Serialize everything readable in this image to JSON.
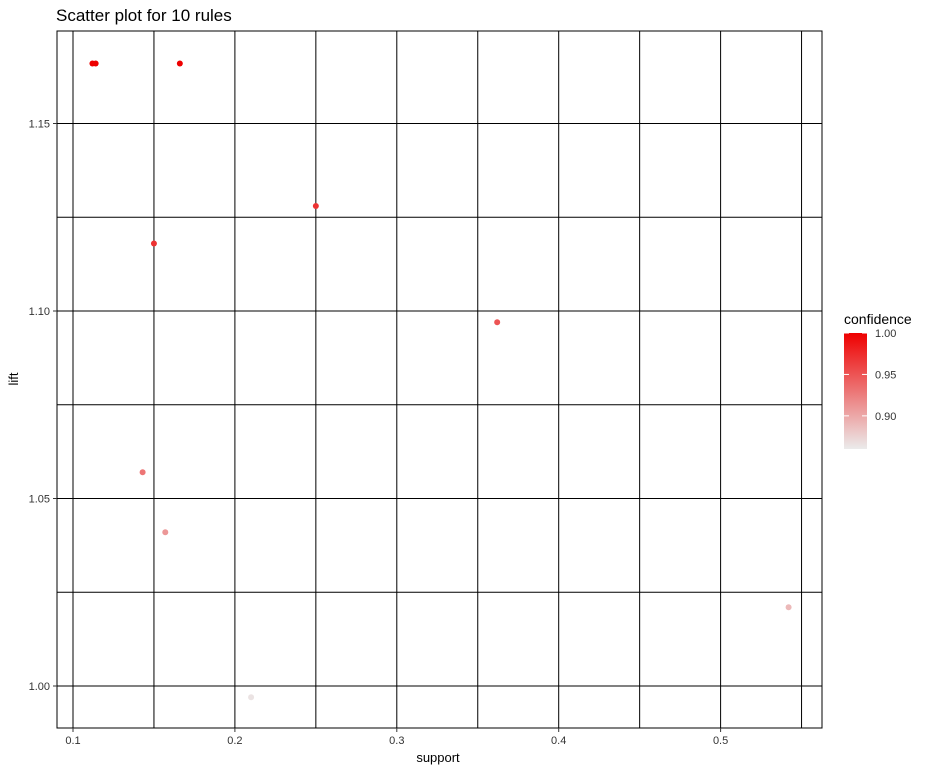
{
  "title": "Scatter plot for 10 rules",
  "chart_data": {
    "type": "scatter",
    "title": "Scatter plot for 10 rules",
    "xlabel": "support",
    "ylabel": "lift",
    "xlim": [
      0.1,
      0.55
    ],
    "ylim": [
      1.0,
      1.15
    ],
    "x_ticks": [
      "0.1",
      "0.2",
      "0.3",
      "0.4",
      "0.5"
    ],
    "y_ticks": [
      "1.00",
      "1.05",
      "1.10",
      "1.15"
    ],
    "grid": true,
    "points": [
      {
        "x": 0.112,
        "y": 1.166,
        "confidence": 1.0
      },
      {
        "x": 0.114,
        "y": 1.166,
        "confidence": 1.0
      },
      {
        "x": 0.166,
        "y": 1.166,
        "confidence": 1.0
      },
      {
        "x": 0.25,
        "y": 1.128,
        "confidence": 0.97
      },
      {
        "x": 0.15,
        "y": 1.118,
        "confidence": 0.97
      },
      {
        "x": 0.362,
        "y": 1.097,
        "confidence": 0.95
      },
      {
        "x": 0.143,
        "y": 1.057,
        "confidence": 0.93
      },
      {
        "x": 0.157,
        "y": 1.041,
        "confidence": 0.91
      },
      {
        "x": 0.542,
        "y": 1.021,
        "confidence": 0.89
      },
      {
        "x": 0.21,
        "y": 0.997,
        "confidence": 0.865
      }
    ],
    "legend": {
      "title": "confidence",
      "position": "right",
      "ticks": [
        "1.00",
        "0.95",
        "0.90"
      ],
      "range": [
        0.86,
        1.0
      ],
      "color_low": "#ebebeb",
      "color_high": "#ee0000"
    }
  }
}
